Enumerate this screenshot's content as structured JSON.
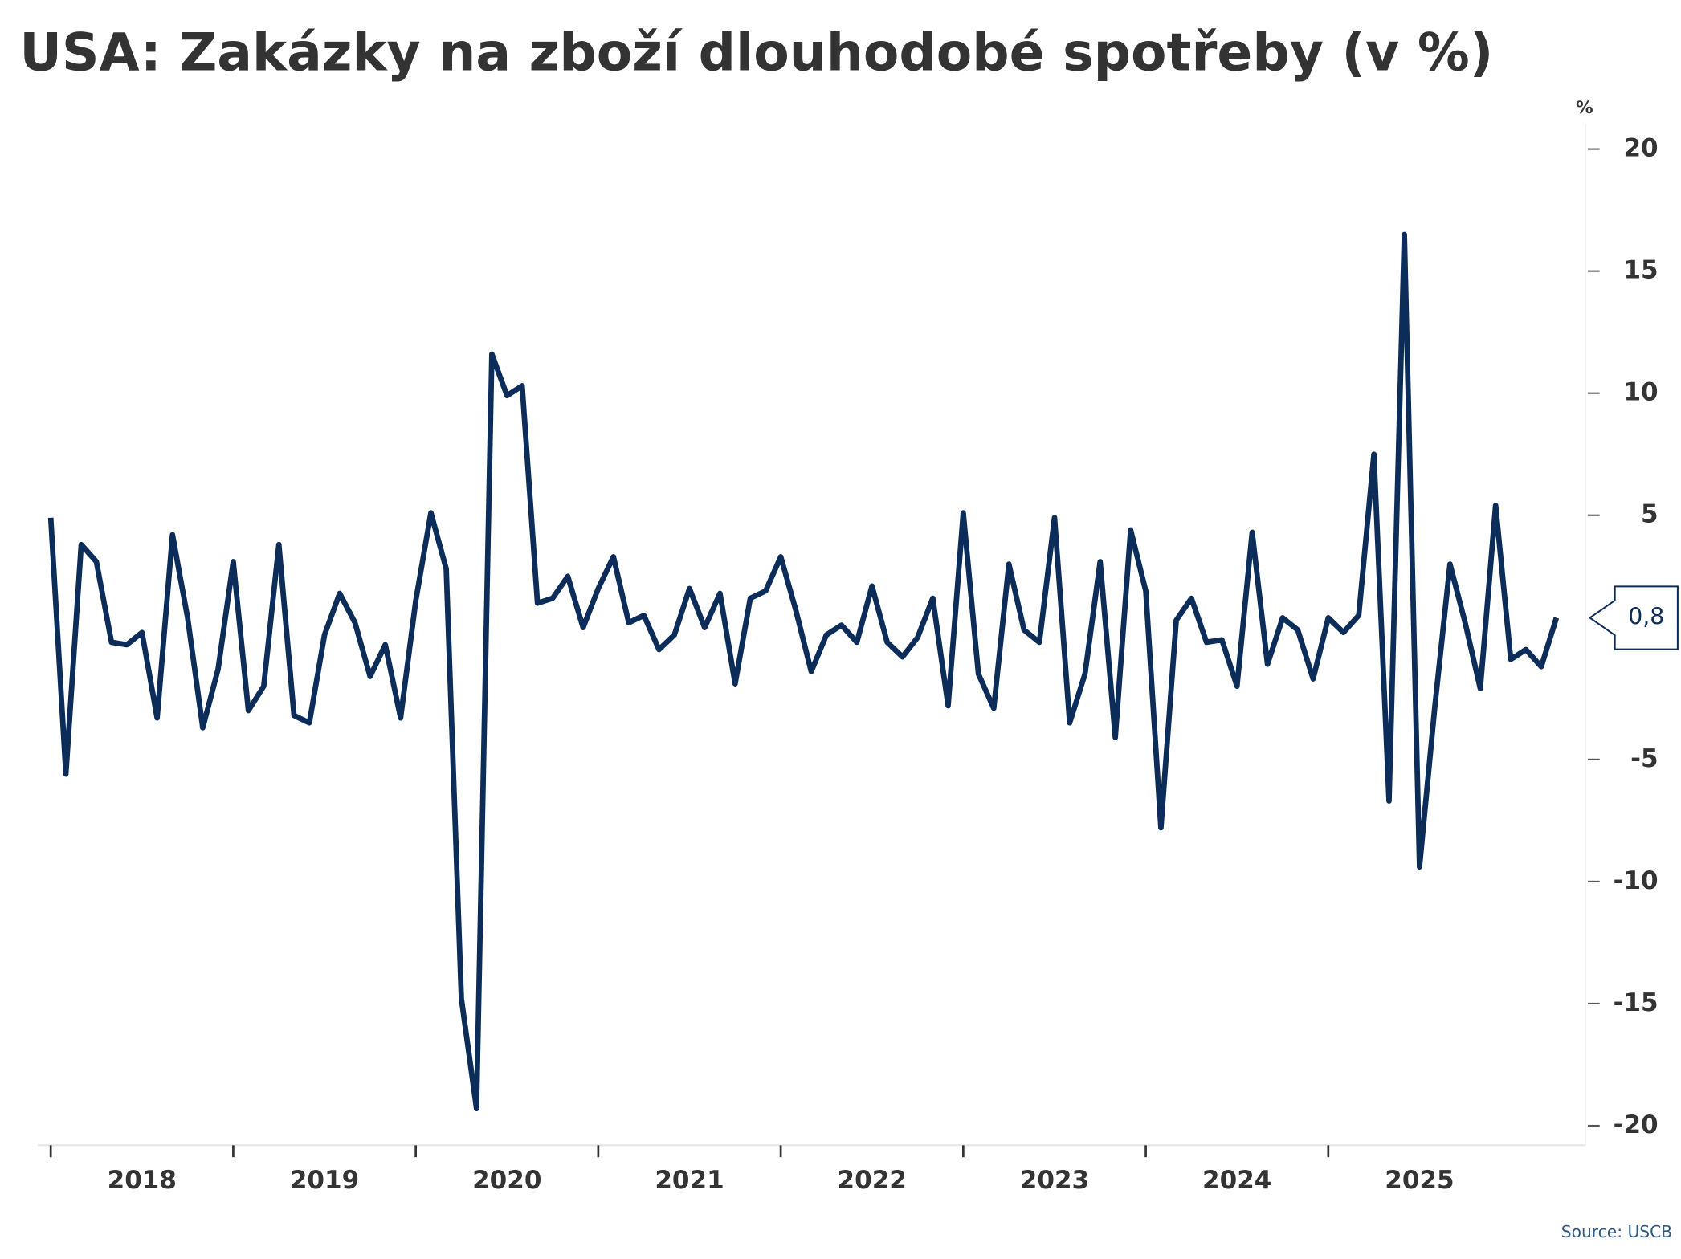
{
  "chart_data": {
    "type": "line",
    "title": "USA: Zakázky na zboží dlouhodobé spotřeby (v %)",
    "y_unit": "%",
    "source": "Source: USCB",
    "last_label": "0,8",
    "x": [
      2018,
      2018.083,
      2018.167,
      2018.25,
      2018.333,
      2018.417,
      2018.5,
      2018.583,
      2018.667,
      2018.75,
      2018.833,
      2018.917,
      2019,
      2019.083,
      2019.167,
      2019.25,
      2019.333,
      2019.417,
      2019.5,
      2019.583,
      2019.667,
      2019.75,
      2019.833,
      2019.917,
      2020,
      2020.083,
      2020.167,
      2020.25,
      2020.333,
      2020.417,
      2020.5,
      2020.583,
      2020.667,
      2020.75,
      2020.833,
      2020.917,
      2021,
      2021.083,
      2021.167,
      2021.25,
      2021.333,
      2021.417,
      2021.5,
      2021.583,
      2021.667,
      2021.75,
      2021.833,
      2021.917,
      2022,
      2022.083,
      2022.167,
      2022.25,
      2022.333,
      2022.417,
      2022.5,
      2022.583,
      2022.667,
      2022.75,
      2022.833,
      2022.917,
      2023,
      2023.083,
      2023.167,
      2023.25,
      2023.333,
      2023.417,
      2023.5,
      2023.583,
      2023.667,
      2023.75,
      2023.833,
      2023.917,
      2024,
      2024.083,
      2024.167,
      2024.25,
      2024.333,
      2024.417,
      2024.5,
      2024.583,
      2024.667,
      2024.75,
      2024.833,
      2024.917,
      2025,
      2025.083,
      2025.167,
      2025.25,
      2025.333,
      2025.417,
      2025.5,
      2025.583,
      2025.667,
      2025.75,
      2025.833,
      2025.917,
      2026,
      2026.083,
      2026.167,
      2026.25
    ],
    "series": [
      {
        "name": "Zakázky na zboží dlouhodobé spotřeby",
        "color": "#0c2c5a",
        "values": [
          4.9,
          -5.6,
          3.8,
          3.1,
          -0.2,
          -0.3,
          0.2,
          -3.3,
          4.2,
          0.8,
          -3.7,
          -1.3,
          3.1,
          -3.0,
          -2.0,
          3.8,
          -3.2,
          -3.5,
          0.1,
          1.8,
          0.6,
          -1.6,
          -0.3,
          -3.3,
          1.5,
          5.1,
          2.8,
          -14.8,
          -19.3,
          11.6,
          9.9,
          10.3,
          1.4,
          1.6,
          2.5,
          0.4,
          2.0,
          3.3,
          0.6,
          0.9,
          -0.5,
          0.1,
          2.0,
          0.4,
          1.8,
          -1.9,
          1.6,
          1.9,
          3.3,
          1.1,
          -1.4,
          0.1,
          0.5,
          -0.2,
          2.1,
          -0.2,
          -0.8,
          0.0,
          1.6,
          -2.8,
          5.1,
          -1.5,
          -2.9,
          3.0,
          0.3,
          -0.2,
          4.9,
          -3.5,
          -1.5,
          3.1,
          -4.1,
          4.4,
          1.9,
          -7.8,
          0.7,
          1.6,
          -0.2,
          -0.1,
          -2.0,
          4.3,
          -1.1,
          0.8,
          0.3,
          -1.7,
          0.8,
          0.2,
          0.9,
          7.5,
          -6.7,
          16.5,
          -9.4,
          -2.9,
          3.0,
          0.6,
          -2.1,
          5.4,
          -0.9,
          -0.5,
          -1.2,
          0.8
        ]
      }
    ],
    "xlim": [
      2017.93,
      2026.41
    ],
    "xticks": [
      {
        "value": 2018,
        "label": "2018"
      },
      {
        "value": 2019,
        "label": "2019"
      },
      {
        "value": 2020,
        "label": "2020"
      },
      {
        "value": 2021,
        "label": "2021"
      },
      {
        "value": 2022,
        "label": "2022"
      },
      {
        "value": 2023,
        "label": "2023"
      },
      {
        "value": 2024,
        "label": "2024"
      },
      {
        "value": 2025,
        "label": "2025"
      }
    ],
    "ylim": [
      -20.8,
      21
    ],
    "yticks": [
      -20,
      -15,
      -10,
      -5,
      5,
      10,
      15,
      20
    ]
  }
}
